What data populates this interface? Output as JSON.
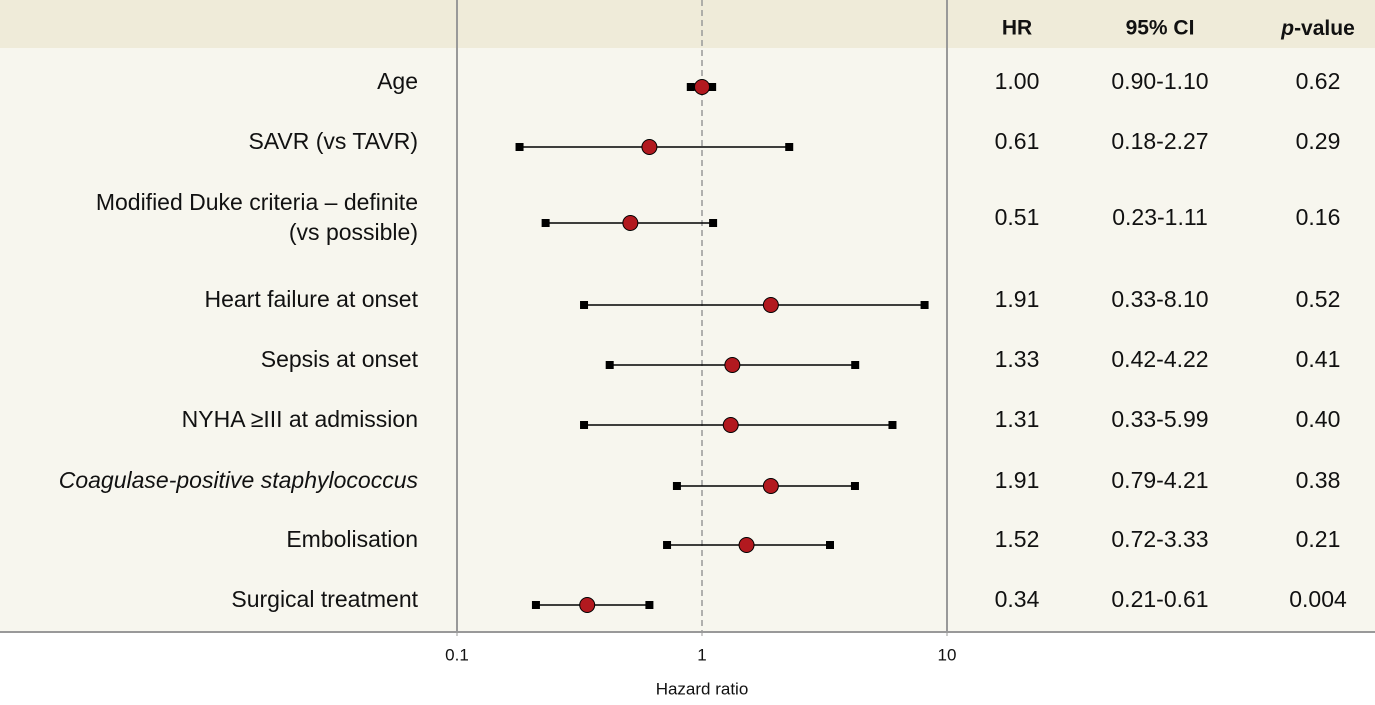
{
  "chart_data": {
    "type": "forest",
    "columns": [
      "HR",
      "95% CI",
      "p-value"
    ],
    "categories": [
      "Age",
      "SAVR (vs TAVR)",
      [
        "Modified Duke criteria – definite",
        "(vs possible)"
      ],
      "Heart failure at onset",
      "Sepsis at onset",
      "NYHA ≥III at admission",
      "Coagulase-positive staphylococcus",
      "Embolisation",
      "Surgical treatment"
    ],
    "values": [
      1.0,
      0.61,
      0.51,
      1.91,
      1.33,
      1.31,
      1.91,
      1.52,
      0.34
    ],
    "value_labels": [
      "1.00",
      "0.61",
      "0.51",
      "1.91",
      "1.33",
      "1.31",
      "1.91",
      "1.52",
      "0.34"
    ],
    "ci_low": [
      0.9,
      0.18,
      0.23,
      0.33,
      0.42,
      0.33,
      0.79,
      0.72,
      0.21
    ],
    "ci_high": [
      1.1,
      2.27,
      1.11,
      8.1,
      4.22,
      5.99,
      4.21,
      3.33,
      0.61
    ],
    "ci_labels": [
      "0.90-1.10",
      "0.18-2.27",
      "0.23-1.11",
      "0.33-8.10",
      "0.42-4.22",
      "0.33-5.99",
      "0.79-4.21",
      "0.72-3.33",
      "0.21-0.61"
    ],
    "p_values": [
      "0.62",
      "0.29",
      "0.16",
      "0.52",
      "0.41",
      "0.40",
      "0.38",
      "0.21",
      "0.004"
    ],
    "xlim": [
      0.1,
      10
    ],
    "xticks": [
      0.1,
      1,
      10
    ],
    "xscale": "log",
    "xlabel": "Hazard ratio",
    "reference": 1,
    "color": "#b2191f"
  }
}
